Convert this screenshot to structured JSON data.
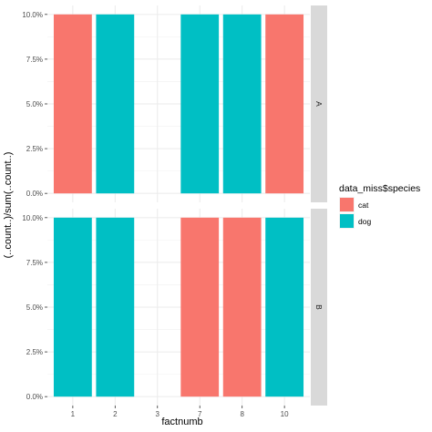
{
  "chart_data": {
    "type": "bar",
    "facet": "rows",
    "categories": [
      "1",
      "2",
      "3",
      "7",
      "8",
      "10"
    ],
    "xlabel": "factnumb",
    "ylabel": "(..count..)/sum(..count..)",
    "ylim": [
      0,
      0.1
    ],
    "yticks": [
      "0.0%",
      "2.5%",
      "5.0%",
      "7.5%",
      "10.0%"
    ],
    "ytick_values": [
      0,
      0.025,
      0.05,
      0.075,
      0.1
    ],
    "grid": true,
    "legend": {
      "title": "data_miss$species",
      "position": "right",
      "entries": [
        {
          "label": "cat",
          "color": "#F8766D"
        },
        {
          "label": "dog",
          "color": "#00BFC4"
        }
      ]
    },
    "panels": [
      {
        "strip": "A",
        "bars": [
          {
            "x": "1",
            "value": 0.1,
            "species": "cat"
          },
          {
            "x": "2",
            "value": 0.1,
            "species": "dog"
          },
          {
            "x": "7",
            "value": 0.1,
            "species": "dog"
          },
          {
            "x": "8",
            "value": 0.1,
            "species": "dog"
          },
          {
            "x": "10",
            "value": 0.1,
            "species": "cat"
          }
        ]
      },
      {
        "strip": "B",
        "bars": [
          {
            "x": "1",
            "value": 0.1,
            "species": "dog"
          },
          {
            "x": "2",
            "value": 0.1,
            "species": "dog"
          },
          {
            "x": "7",
            "value": 0.1,
            "species": "cat"
          },
          {
            "x": "8",
            "value": 0.1,
            "species": "cat"
          },
          {
            "x": "10",
            "value": 0.1,
            "species": "dog"
          }
        ]
      }
    ]
  }
}
